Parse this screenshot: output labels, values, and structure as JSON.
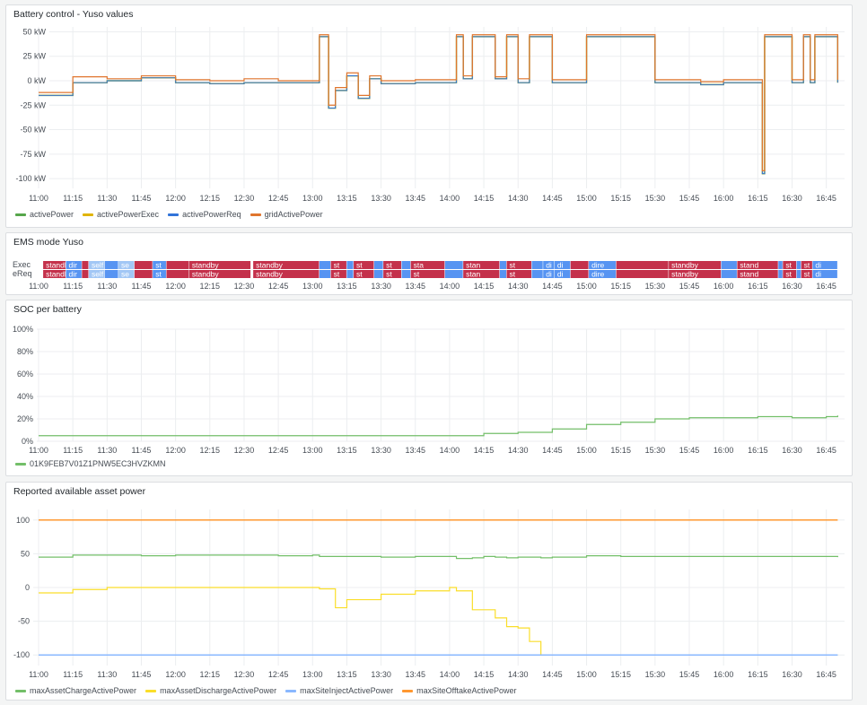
{
  "time_ticks": [
    "11:00",
    "11:15",
    "11:30",
    "11:45",
    "12:00",
    "12:15",
    "12:30",
    "12:45",
    "13:00",
    "13:15",
    "13:30",
    "13:45",
    "14:00",
    "14:15",
    "14:30",
    "14:45",
    "15:00",
    "15:15",
    "15:30",
    "15:45",
    "16:00",
    "16:15",
    "16:30",
    "16:45"
  ],
  "panels": {
    "battery": {
      "title": "Battery control - Yuso values",
      "y_ticks": [
        "50 kW",
        "25 kW",
        "0 kW",
        "-25 kW",
        "-50 kW",
        "-75 kW",
        "-100 kW"
      ],
      "legend": [
        {
          "label": "activePower",
          "color": "#56a64b"
        },
        {
          "label": "activePowerExec",
          "color": "#e0b400"
        },
        {
          "label": "activePowerReq",
          "color": "#3274d9"
        },
        {
          "label": "gridActivePower",
          "color": "#e0752d"
        }
      ]
    },
    "ems": {
      "title": "EMS mode Yuso",
      "rows": [
        "Exec",
        "eReq"
      ],
      "standby_color": "#c4314b",
      "direct_color": "#5794f2",
      "self_color": "#a2c7f5"
    },
    "soc": {
      "title": "SOC per battery",
      "y_ticks": [
        "100%",
        "80%",
        "60%",
        "40%",
        "20%",
        "0%"
      ],
      "legend": [
        {
          "label": "01K9FEB7V01Z1PNW5EC3HVZKMN",
          "color": "#73bf69"
        }
      ]
    },
    "asset": {
      "title": "Reported available asset power",
      "y_ticks": [
        "100",
        "50",
        "0",
        "-50",
        "-100"
      ],
      "legend": [
        {
          "label": "maxAssetChargeActivePower",
          "color": "#73bf69"
        },
        {
          "label": "maxAssetDischargeActivePower",
          "color": "#fade2a"
        },
        {
          "label": "maxSiteInjectActivePower",
          "color": "#8ab8ff"
        },
        {
          "label": "maxSiteOfftakeActivePower",
          "color": "#ff9830"
        }
      ]
    }
  },
  "chart_data": [
    {
      "type": "line",
      "title": "Battery control - Yuso values",
      "ylim": [
        -110,
        55
      ],
      "x": [
        "11:00",
        "11:15",
        "11:30",
        "11:45",
        "12:00",
        "12:15",
        "12:30",
        "12:45",
        "13:00",
        "13:03",
        "13:05",
        "13:07",
        "13:10",
        "13:12",
        "13:15",
        "13:20",
        "13:25",
        "13:30",
        "13:35",
        "13:45",
        "14:00",
        "14:03",
        "14:06",
        "14:10",
        "14:20",
        "14:25",
        "14:30",
        "14:35",
        "14:45",
        "15:00",
        "15:15",
        "15:30",
        "15:45",
        "15:50",
        "16:00",
        "16:15",
        "16:17",
        "16:18",
        "16:30",
        "16:35",
        "16:38",
        "16:40",
        "16:48",
        "16:50"
      ],
      "series": [
        {
          "name": "activePower",
          "values": [
            -15,
            -2,
            0,
            3,
            -2,
            -3,
            -2,
            -2,
            -2,
            45,
            45,
            -28,
            -10,
            -10,
            5,
            -18,
            2,
            -3,
            -3,
            -2,
            -2,
            45,
            2,
            45,
            2,
            45,
            -2,
            45,
            -2,
            45,
            45,
            -2,
            -2,
            -4,
            -2,
            -2,
            -95,
            45,
            -2,
            45,
            -2,
            45,
            45,
            -2
          ]
        },
        {
          "name": "activePowerExec",
          "values": [
            -15,
            -2,
            0,
            3,
            -2,
            -3,
            -2,
            -2,
            -2,
            45,
            45,
            -28,
            -10,
            -10,
            5,
            -18,
            2,
            -3,
            -3,
            -2,
            -2,
            45,
            2,
            45,
            2,
            45,
            -2,
            45,
            -2,
            45,
            45,
            -2,
            -2,
            -4,
            -2,
            -2,
            -95,
            45,
            -2,
            45,
            -2,
            45,
            45,
            -2
          ]
        },
        {
          "name": "activePowerReq",
          "values": [
            -15,
            -2,
            0,
            3,
            -2,
            -3,
            -2,
            -2,
            -2,
            45,
            45,
            -28,
            -10,
            -10,
            5,
            -18,
            2,
            -3,
            -3,
            -2,
            -2,
            45,
            2,
            45,
            2,
            45,
            -2,
            45,
            -2,
            45,
            45,
            -2,
            -2,
            -4,
            -2,
            -2,
            -95,
            45,
            -2,
            45,
            -2,
            45,
            45,
            -2
          ]
        },
        {
          "name": "gridActivePower",
          "values": [
            -12,
            4,
            2,
            5,
            1,
            0,
            2,
            0,
            0,
            47,
            47,
            -25,
            -7,
            -7,
            8,
            -15,
            5,
            0,
            0,
            1,
            1,
            47,
            5,
            47,
            4,
            47,
            2,
            47,
            1,
            47,
            47,
            1,
            1,
            -1,
            1,
            1,
            -92,
            47,
            1,
            47,
            1,
            47,
            47,
            1
          ]
        }
      ]
    },
    {
      "type": "line",
      "title": "SOC per battery",
      "ylim": [
        0,
        100
      ],
      "x": [
        "11:00",
        "13:00",
        "13:30",
        "14:00",
        "14:15",
        "14:30",
        "14:45",
        "15:00",
        "15:15",
        "15:30",
        "15:45",
        "16:00",
        "16:15",
        "16:30",
        "16:45",
        "16:50"
      ],
      "series": [
        {
          "name": "01K9FEB7V01Z1PNW5EC3HVZKMN",
          "values": [
            5,
            5,
            5,
            5,
            7,
            8,
            11,
            15,
            17,
            20,
            21,
            21,
            22,
            21,
            22,
            23
          ]
        }
      ]
    },
    {
      "type": "line",
      "title": "Reported available asset power",
      "ylim": [
        -105,
        105
      ],
      "x": [
        "11:00",
        "11:15",
        "11:30",
        "11:45",
        "12:00",
        "12:15",
        "12:30",
        "12:45",
        "13:00",
        "13:03",
        "13:10",
        "13:15",
        "13:30",
        "13:45",
        "14:00",
        "14:03",
        "14:10",
        "14:15",
        "14:20",
        "14:25",
        "14:30",
        "14:35",
        "14:40",
        "14:45",
        "15:00",
        "15:15",
        "15:30",
        "15:45",
        "16:00",
        "16:15",
        "16:30",
        "16:45",
        "16:50"
      ],
      "series": [
        {
          "name": "maxAssetChargeActivePower",
          "values": [
            45,
            48,
            48,
            47,
            48,
            48,
            48,
            47,
            48,
            46,
            46,
            46,
            45,
            46,
            46,
            43,
            44,
            46,
            45,
            44,
            45,
            45,
            44,
            45,
            47,
            46,
            46,
            46,
            46,
            46,
            46,
            46,
            45
          ]
        },
        {
          "name": "maxAssetDischargeActivePower",
          "values": [
            -8,
            -3,
            0,
            0,
            0,
            0,
            0,
            0,
            0,
            -2,
            -30,
            -18,
            -10,
            -5,
            0,
            -5,
            -33,
            -33,
            -45,
            -58,
            -60,
            -80,
            -100,
            -100,
            -100,
            -100,
            -100,
            -100,
            -100,
            -100,
            -100,
            -100,
            -100
          ]
        },
        {
          "name": "maxSiteInjectActivePower",
          "values": [
            -100,
            -100,
            -100,
            -100,
            -100,
            -100,
            -100,
            -100,
            -100,
            -100,
            -100,
            -100,
            -100,
            -100,
            -100,
            -100,
            -100,
            -100,
            -100,
            -100,
            -100,
            -100,
            -100,
            -100,
            -100,
            -100,
            -100,
            -100,
            -100,
            -100,
            -100,
            -100,
            -100
          ]
        },
        {
          "name": "maxSiteOfftakeActivePower",
          "values": [
            100,
            100,
            100,
            100,
            100,
            100,
            100,
            100,
            100,
            100,
            100,
            100,
            100,
            100,
            100,
            100,
            100,
            100,
            100,
            100,
            100,
            100,
            100,
            100,
            100,
            100,
            100,
            100,
            100,
            100,
            100,
            100,
            100
          ]
        }
      ]
    }
  ],
  "ems_segments": {
    "Exec": [
      {
        "label": "standb",
        "mode": "standby",
        "start": "11:02",
        "end": "11:12"
      },
      {
        "label": "dir",
        "mode": "direct",
        "start": "11:12",
        "end": "11:19"
      },
      {
        "label": "",
        "mode": "standby",
        "start": "11:19",
        "end": "11:22"
      },
      {
        "label": "self",
        "mode": "self",
        "start": "11:22",
        "end": "11:29"
      },
      {
        "label": "",
        "mode": "direct",
        "start": "11:29",
        "end": "11:35"
      },
      {
        "label": "se",
        "mode": "self",
        "start": "11:35",
        "end": "11:42"
      },
      {
        "label": "",
        "mode": "standby",
        "start": "11:42",
        "end": "11:50"
      },
      {
        "label": "st",
        "mode": "direct",
        "start": "11:50",
        "end": "11:56"
      },
      {
        "label": "",
        "mode": "standby",
        "start": "11:56",
        "end": "12:06"
      },
      {
        "label": "standby",
        "mode": "standby",
        "start": "12:06",
        "end": "12:33"
      },
      {
        "label": "standby",
        "mode": "standby",
        "start": "12:34",
        "end": "13:03"
      },
      {
        "label": "",
        "mode": "direct",
        "start": "13:03",
        "end": "13:08"
      },
      {
        "label": "st",
        "mode": "standby",
        "start": "13:08",
        "end": "13:15"
      },
      {
        "label": "",
        "mode": "direct",
        "start": "13:15",
        "end": "13:18"
      },
      {
        "label": "st",
        "mode": "standby",
        "start": "13:18",
        "end": "13:27"
      },
      {
        "label": "",
        "mode": "direct",
        "start": "13:27",
        "end": "13:31"
      },
      {
        "label": "st",
        "mode": "standby",
        "start": "13:31",
        "end": "13:39"
      },
      {
        "label": "",
        "mode": "direct",
        "start": "13:39",
        "end": "13:43"
      },
      {
        "label": "sta",
        "mode": "standby",
        "start": "13:43",
        "end": "13:58"
      },
      {
        "label": "",
        "mode": "direct",
        "start": "13:58",
        "end": "14:06"
      },
      {
        "label": "stan",
        "mode": "standby",
        "start": "14:06",
        "end": "14:22"
      },
      {
        "label": "",
        "mode": "direct",
        "start": "14:22",
        "end": "14:25"
      },
      {
        "label": "st",
        "mode": "standby",
        "start": "14:25",
        "end": "14:36"
      },
      {
        "label": "",
        "mode": "direct",
        "start": "14:36",
        "end": "14:41"
      },
      {
        "label": "di",
        "mode": "direct",
        "start": "14:41",
        "end": "14:46"
      },
      {
        "label": "di",
        "mode": "direct",
        "start": "14:46",
        "end": "14:53"
      },
      {
        "label": "",
        "mode": "standby",
        "start": "14:53",
        "end": "15:01"
      },
      {
        "label": "dire",
        "mode": "direct",
        "start": "15:01",
        "end": "15:13"
      },
      {
        "label": "",
        "mode": "standby",
        "start": "15:13",
        "end": "15:36"
      },
      {
        "label": "standby",
        "mode": "standby",
        "start": "15:36",
        "end": "15:59"
      },
      {
        "label": "",
        "mode": "direct",
        "start": "15:59",
        "end": "16:06"
      },
      {
        "label": "stand",
        "mode": "standby",
        "start": "16:06",
        "end": "16:24"
      },
      {
        "label": "",
        "mode": "direct",
        "start": "16:24",
        "end": "16:26"
      },
      {
        "label": "st",
        "mode": "standby",
        "start": "16:26",
        "end": "16:32"
      },
      {
        "label": "",
        "mode": "direct",
        "start": "16:32",
        "end": "16:34"
      },
      {
        "label": "st",
        "mode": "standby",
        "start": "16:34",
        "end": "16:39"
      },
      {
        "label": "di",
        "mode": "direct",
        "start": "16:39",
        "end": "16:50"
      }
    ],
    "eReq": [
      {
        "label": "standb",
        "mode": "standby",
        "start": "11:02",
        "end": "11:12"
      },
      {
        "label": "dir",
        "mode": "direct",
        "start": "11:12",
        "end": "11:19"
      },
      {
        "label": "",
        "mode": "standby",
        "start": "11:19",
        "end": "11:22"
      },
      {
        "label": "self",
        "mode": "self",
        "start": "11:22",
        "end": "11:29"
      },
      {
        "label": "",
        "mode": "direct",
        "start": "11:29",
        "end": "11:35"
      },
      {
        "label": "se",
        "mode": "self",
        "start": "11:35",
        "end": "11:42"
      },
      {
        "label": "",
        "mode": "standby",
        "start": "11:42",
        "end": "11:50"
      },
      {
        "label": "st",
        "mode": "direct",
        "start": "11:50",
        "end": "11:56"
      },
      {
        "label": "",
        "mode": "standby",
        "start": "11:56",
        "end": "12:06"
      },
      {
        "label": "standby",
        "mode": "standby",
        "start": "12:06",
        "end": "12:33"
      },
      {
        "label": "standby",
        "mode": "standby",
        "start": "12:34",
        "end": "13:03"
      },
      {
        "label": "",
        "mode": "direct",
        "start": "13:03",
        "end": "13:08"
      },
      {
        "label": "st",
        "mode": "standby",
        "start": "13:08",
        "end": "13:15"
      },
      {
        "label": "",
        "mode": "direct",
        "start": "13:15",
        "end": "13:18"
      },
      {
        "label": "st",
        "mode": "standby",
        "start": "13:18",
        "end": "13:27"
      },
      {
        "label": "",
        "mode": "direct",
        "start": "13:27",
        "end": "13:31"
      },
      {
        "label": "st",
        "mode": "standby",
        "start": "13:31",
        "end": "13:39"
      },
      {
        "label": "",
        "mode": "direct",
        "start": "13:39",
        "end": "13:43"
      },
      {
        "label": "st",
        "mode": "standby",
        "start": "13:43",
        "end": "13:58"
      },
      {
        "label": "",
        "mode": "direct",
        "start": "13:58",
        "end": "14:06"
      },
      {
        "label": "stan",
        "mode": "standby",
        "start": "14:06",
        "end": "14:22"
      },
      {
        "label": "",
        "mode": "direct",
        "start": "14:22",
        "end": "14:25"
      },
      {
        "label": "st",
        "mode": "standby",
        "start": "14:25",
        "end": "14:36"
      },
      {
        "label": "",
        "mode": "direct",
        "start": "14:36",
        "end": "14:41"
      },
      {
        "label": "di",
        "mode": "direct",
        "start": "14:41",
        "end": "14:46"
      },
      {
        "label": "di",
        "mode": "direct",
        "start": "14:46",
        "end": "14:53"
      },
      {
        "label": "",
        "mode": "standby",
        "start": "14:53",
        "end": "15:01"
      },
      {
        "label": "dire",
        "mode": "direct",
        "start": "15:01",
        "end": "15:13"
      },
      {
        "label": "",
        "mode": "standby",
        "start": "15:13",
        "end": "15:36"
      },
      {
        "label": "standby",
        "mode": "standby",
        "start": "15:36",
        "end": "15:59"
      },
      {
        "label": "",
        "mode": "direct",
        "start": "15:59",
        "end": "16:06"
      },
      {
        "label": "stand",
        "mode": "standby",
        "start": "16:06",
        "end": "16:24"
      },
      {
        "label": "",
        "mode": "direct",
        "start": "16:24",
        "end": "16:26"
      },
      {
        "label": "st",
        "mode": "standby",
        "start": "16:26",
        "end": "16:32"
      },
      {
        "label": "",
        "mode": "direct",
        "start": "16:32",
        "end": "16:34"
      },
      {
        "label": "st",
        "mode": "standby",
        "start": "16:34",
        "end": "16:39"
      },
      {
        "label": "di",
        "mode": "direct",
        "start": "16:39",
        "end": "16:50"
      }
    ]
  }
}
